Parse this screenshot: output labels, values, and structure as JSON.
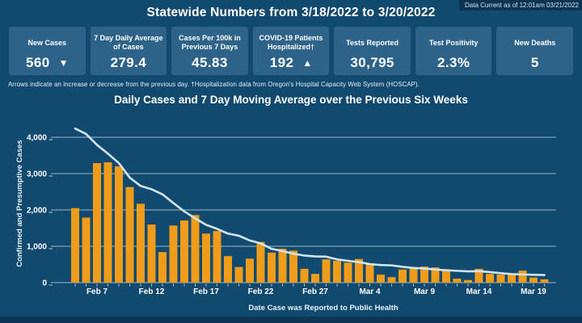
{
  "header": {
    "data_current": "Data Current as of 12:01am 03/21/2022",
    "title": "Statewide Numbers from 3/18/2022 to 3/20/2022"
  },
  "stat_cards": [
    {
      "id": "new-cases",
      "label": "New Cases",
      "value": "560",
      "arrow": "▼",
      "arrow_name": "decrease-arrow-icon"
    },
    {
      "id": "seven-day-average",
      "label": "7 Day Daily Average of Cases",
      "value": "279.4",
      "arrow": "",
      "arrow_name": ""
    },
    {
      "id": "cases-per-100k",
      "label": "Cases Per 100k in Previous 7 Days",
      "value": "45.83",
      "arrow": "",
      "arrow_name": ""
    },
    {
      "id": "patients-hospitalized",
      "label": "COVID-19 Patients Hospitalized†",
      "value": "192",
      "arrow": "▲",
      "arrow_name": "increase-arrow-icon"
    },
    {
      "id": "tests-reported",
      "label": "Tests Reported",
      "value": "30,795",
      "arrow": "",
      "arrow_name": ""
    },
    {
      "id": "test-positivity",
      "label": "Test Positivity",
      "value": "2.3%",
      "arrow": "",
      "arrow_name": ""
    },
    {
      "id": "new-deaths",
      "label": "New Deaths",
      "value": "5",
      "arrow": "",
      "arrow_name": ""
    }
  ],
  "footnote": "Arrows indicate an increase or decrease from the previous day. †Hospitalization data from Oregon's Hospital Capacity Web System (HOSCAP).",
  "chart_title": "Daily Cases and 7 Day Moving Average over the Previous Six Weeks",
  "chart_data": {
    "type": "bar",
    "title": "Daily Cases and 7 Day Moving Average over the Previous Six Weeks",
    "xlabel": "Date Case was Reported to Public Health",
    "ylabel": "Confirmed and Presumptive Cases",
    "ylim": [
      0,
      4000
    ],
    "yticks": [
      0,
      1000,
      2000,
      3000,
      4000
    ],
    "ytick_labels": [
      "0",
      "1,000",
      "2,000",
      "3,000",
      "4,000"
    ],
    "grid": true,
    "legend_position": "none",
    "categories": [
      "Feb 5",
      "Feb 6",
      "Feb 7",
      "Feb 8",
      "Feb 9",
      "Feb 10",
      "Feb 11",
      "Feb 12",
      "Feb 13",
      "Feb 14",
      "Feb 15",
      "Feb 16",
      "Feb 17",
      "Feb 18",
      "Feb 19",
      "Feb 20",
      "Feb 21",
      "Feb 22",
      "Feb 23",
      "Feb 24",
      "Feb 25",
      "Feb 26",
      "Feb 27",
      "Feb 28",
      "Mar 1",
      "Mar 2",
      "Mar 3",
      "Mar 4",
      "Mar 5",
      "Mar 6",
      "Mar 7",
      "Mar 8",
      "Mar 9",
      "Mar 10",
      "Mar 11",
      "Mar 12",
      "Mar 13",
      "Mar 14",
      "Mar 15",
      "Mar 16",
      "Mar 17",
      "Mar 18",
      "Mar 19",
      "Mar 20"
    ],
    "series": [
      {
        "name": "Daily Cases",
        "type": "bar",
        "values": [
          2050,
          1790,
          3290,
          3310,
          3200,
          2630,
          2170,
          1600,
          840,
          1570,
          1710,
          1860,
          1350,
          1420,
          730,
          430,
          660,
          1120,
          825,
          930,
          880,
          380,
          240,
          640,
          600,
          550,
          650,
          500,
          220,
          150,
          360,
          420,
          440,
          420,
          360,
          110,
          70,
          380,
          240,
          220,
          210,
          330,
          140,
          90
        ]
      },
      {
        "name": "7 Day Moving Average",
        "type": "line",
        "values": [
          4240,
          4090,
          3790,
          3550,
          3290,
          2890,
          2660,
          2570,
          2430,
          2190,
          1960,
          1770,
          1590,
          1480,
          1350,
          1290,
          1160,
          1080,
          930,
          870,
          795,
          745,
          720,
          715,
          640,
          600,
          565,
          510,
          485,
          475,
          435,
          405,
          390,
          360,
          340,
          325,
          310,
          315,
          290,
          260,
          235,
          225,
          215,
          210
        ]
      }
    ],
    "x_tick_labels": [
      {
        "index": 2,
        "label": "Feb 7"
      },
      {
        "index": 7,
        "label": "Feb 12"
      },
      {
        "index": 12,
        "label": "Feb 17"
      },
      {
        "index": 17,
        "label": "Feb 22"
      },
      {
        "index": 22,
        "label": "Feb 27"
      },
      {
        "index": 27,
        "label": "Mar 4"
      },
      {
        "index": 32,
        "label": "Mar 9"
      },
      {
        "index": 37,
        "label": "Mar 14"
      },
      {
        "index": 42,
        "label": "Mar 19"
      }
    ]
  },
  "colors": {
    "page_bg": "#12496F",
    "card_bg": "#2D6389",
    "topbar_bg": "#0C3453",
    "bottom_strip": "#0C3453",
    "bar": "#F09C1B",
    "line": "#CFE4F1",
    "grid": "rgba(255,255,255,0.6)",
    "tick": "rgba(207,227,242,0.85)",
    "text": "#FFFFFF"
  }
}
